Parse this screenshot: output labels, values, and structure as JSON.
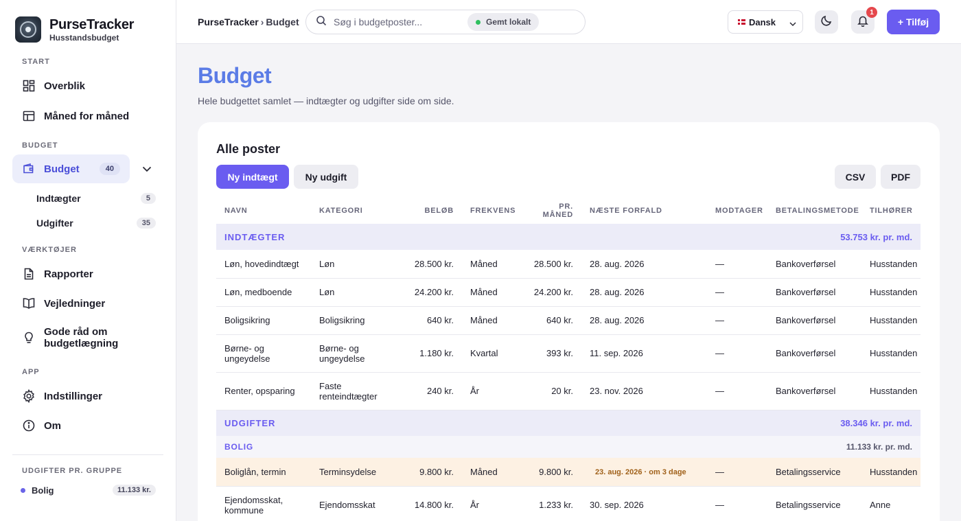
{
  "brand": {
    "name": "PurseTracker",
    "subtitle": "Husstandsbudget"
  },
  "sidebar": {
    "sections": {
      "start": "START",
      "budget": "BUDGET",
      "tools": "VÆRKTØJER",
      "app": "APP",
      "groups": "UDGIFTER PR. GRUPPE"
    },
    "items": {
      "overview": "Overblik",
      "monthly": "Måned for måned",
      "budget": "Budget",
      "budget_count": "40",
      "income": "Indtægter",
      "income_count": "5",
      "expenses": "Udgifter",
      "expenses_count": "35",
      "reports": "Rapporter",
      "guides": "Vejledninger",
      "tips": "Gode råd om budgetlægning",
      "settings": "Indstillinger",
      "about": "Om"
    },
    "groups": [
      {
        "name": "Bolig",
        "amount": "11.133 kr.",
        "color": "#6a64e8"
      }
    ]
  },
  "topbar": {
    "breadcrumb_root": "PurseTracker",
    "breadcrumb_sep": "›",
    "breadcrumb_current": "Budget",
    "search_placeholder": "Søg i budgetposter...",
    "saved_label": "Gemt lokalt",
    "language": "Dansk",
    "notification_count": "1",
    "add_label": "+ Tilføj"
  },
  "page": {
    "title": "Budget",
    "subtitle": "Hele budgettet samlet — indtægter og udgifter side om side."
  },
  "card": {
    "title": "Alle poster",
    "new_income": "Ny indtægt",
    "new_expense": "Ny udgift",
    "csv": "CSV",
    "pdf": "PDF"
  },
  "table": {
    "headers": [
      "NAVN",
      "KATEGORI",
      "BELØB",
      "FREKVENS",
      "PR. MÅNED",
      "NÆSTE FORFALD",
      "MODTAGER",
      "BETALINGSMETODE",
      "TILHØRER"
    ],
    "income_section": {
      "label": "INDTÆGTER",
      "total": "53.753 kr. pr. md."
    },
    "income_rows": [
      {
        "name": "Løn, hovedindtægt",
        "category": "Løn",
        "amount": "28.500 kr.",
        "freq": "Måned",
        "monthly": "28.500 kr.",
        "due": "28. aug. 2026",
        "payee": "—",
        "method": "Bankoverførsel",
        "owner": "Husstanden"
      },
      {
        "name": "Løn, medboende",
        "category": "Løn",
        "amount": "24.200 kr.",
        "freq": "Måned",
        "monthly": "24.200 kr.",
        "due": "28. aug. 2026",
        "payee": "—",
        "method": "Bankoverførsel",
        "owner": "Husstanden"
      },
      {
        "name": "Boligsikring",
        "category": "Boligsikring",
        "amount": "640 kr.",
        "freq": "Måned",
        "monthly": "640 kr.",
        "due": "28. aug. 2026",
        "payee": "—",
        "method": "Bankoverførsel",
        "owner": "Husstanden"
      },
      {
        "name": "Børne- og ungeydelse",
        "category": "Børne- og ungeydelse",
        "amount": "1.180 kr.",
        "freq": "Kvartal",
        "monthly": "393 kr.",
        "due": "11. sep. 2026",
        "payee": "—",
        "method": "Bankoverførsel",
        "owner": "Husstanden"
      },
      {
        "name": "Renter, opsparing",
        "category": "Faste renteindtægter",
        "amount": "240 kr.",
        "freq": "År",
        "monthly": "20 kr.",
        "due": "23. nov. 2026",
        "payee": "—",
        "method": "Bankoverførsel",
        "owner": "Husstanden"
      }
    ],
    "expense_section": {
      "label": "UDGIFTER",
      "total": "38.346 kr. pr. md."
    },
    "housing_group": {
      "label": "BOLIG",
      "total": "11.133 kr. pr. md."
    },
    "expense_rows": [
      {
        "name": "Boliglån, termin",
        "category": "Terminsydelse",
        "amount": "9.800 kr.",
        "freq": "Måned",
        "monthly": "9.800 kr.",
        "due": "23. aug. 2026 · om 3 dage",
        "payee": "—",
        "method": "Betalingsservice",
        "owner": "Husstanden"
      },
      {
        "name": "Ejendomsskat, kommune",
        "category": "Ejendomsskat",
        "amount": "14.800 kr.",
        "freq": "År",
        "monthly": "1.233 kr.",
        "due": "30. sep. 2026",
        "payee": "—",
        "method": "Betalingsservice",
        "owner": "Anne"
      }
    ]
  }
}
